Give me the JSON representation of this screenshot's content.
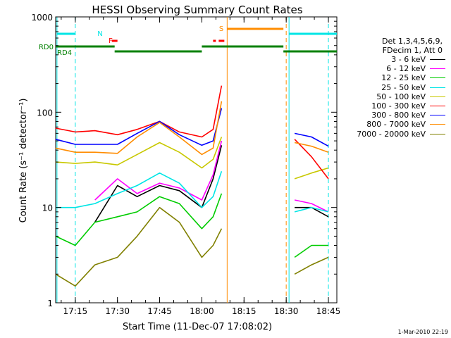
{
  "chart_data": {
    "type": "line",
    "title": "HESSI Observing Summary Count Rates",
    "xlabel": "Start Time (11-Dec-07 17:08:02)",
    "ylabel": "Count Rate (s⁻¹ detector⁻¹)",
    "yscale": "log",
    "ylim": [
      1,
      1000
    ],
    "xlim": [
      "17:08:02",
      "18:48:00"
    ],
    "x_ticks": [
      "17:15",
      "17:30",
      "17:45",
      "18:00",
      "18:15",
      "18:30",
      "18:45"
    ],
    "y_ticks": [
      "1",
      "10",
      "100",
      "1000"
    ],
    "x": [
      "17:08",
      "17:15",
      "17:22",
      "17:30",
      "17:37",
      "17:45",
      "17:52",
      "18:00",
      "18:04",
      "18:07",
      "18:09",
      "18:30",
      "18:33",
      "18:39",
      "18:45"
    ],
    "series": [
      {
        "name": "3 - 6 keV",
        "color": "#000000",
        "values": [
          null,
          null,
          7,
          17,
          13,
          17,
          15,
          10,
          20,
          45,
          null,
          null,
          10,
          10,
          8
        ]
      },
      {
        "name": "6 - 12 keV",
        "color": "#ff00ff",
        "values": [
          null,
          null,
          12,
          20,
          14,
          18,
          16,
          12,
          22,
          50,
          null,
          null,
          12,
          11,
          9
        ]
      },
      {
        "name": "12 - 25 keV",
        "color": "#00cc00",
        "values": [
          5,
          4,
          7,
          8,
          9,
          13,
          11,
          6,
          8,
          14,
          null,
          null,
          3,
          4,
          4
        ]
      },
      {
        "name": "25 - 50 keV",
        "color": "#00e5e5",
        "values": [
          10,
          10,
          11,
          14,
          17,
          23,
          18,
          10,
          13,
          24,
          null,
          null,
          9,
          10,
          9
        ]
      },
      {
        "name": "50 - 100 keV",
        "color": "#c8c800",
        "values": [
          30,
          29,
          30,
          28,
          36,
          48,
          38,
          26,
          32,
          55,
          null,
          null,
          20,
          23,
          26
        ]
      },
      {
        "name": "100 - 300 keV",
        "color": "#ff0000",
        "values": [
          68,
          62,
          64,
          58,
          66,
          80,
          62,
          55,
          66,
          190,
          null,
          null,
          52,
          34,
          20
        ]
      },
      {
        "name": "300 - 800 keV",
        "color": "#0000ff",
        "values": [
          52,
          46,
          46,
          46,
          60,
          80,
          58,
          45,
          50,
          110,
          null,
          null,
          60,
          55,
          44
        ]
      },
      {
        "name": "800 - 7000 keV",
        "color": "#ff8c00",
        "values": [
          42,
          38,
          38,
          37,
          55,
          78,
          55,
          36,
          42,
          130,
          null,
          null,
          48,
          44,
          38
        ]
      },
      {
        "name": "7000 - 20000 keV",
        "color": "#808000",
        "values": [
          2,
          1.5,
          2.5,
          3,
          5,
          10,
          7,
          3,
          4,
          6,
          null,
          null,
          2,
          2.5,
          3
        ]
      }
    ],
    "flags": [
      {
        "label": "N",
        "color": "#00e5e5"
      },
      {
        "label": "F",
        "color": "#ff0000"
      },
      {
        "label": "S",
        "color": "#ff8c00"
      },
      {
        "label": "RD0",
        "color": "#008000"
      },
      {
        "label": "RD4",
        "color": "#008000"
      }
    ],
    "legend_header": [
      "Det 1,3,4,5,6,9,",
      "FDecim 1, Att 0"
    ],
    "legend_placement": "right",
    "grid": false
  },
  "timestamp": "1-Mar-2010 22:19"
}
